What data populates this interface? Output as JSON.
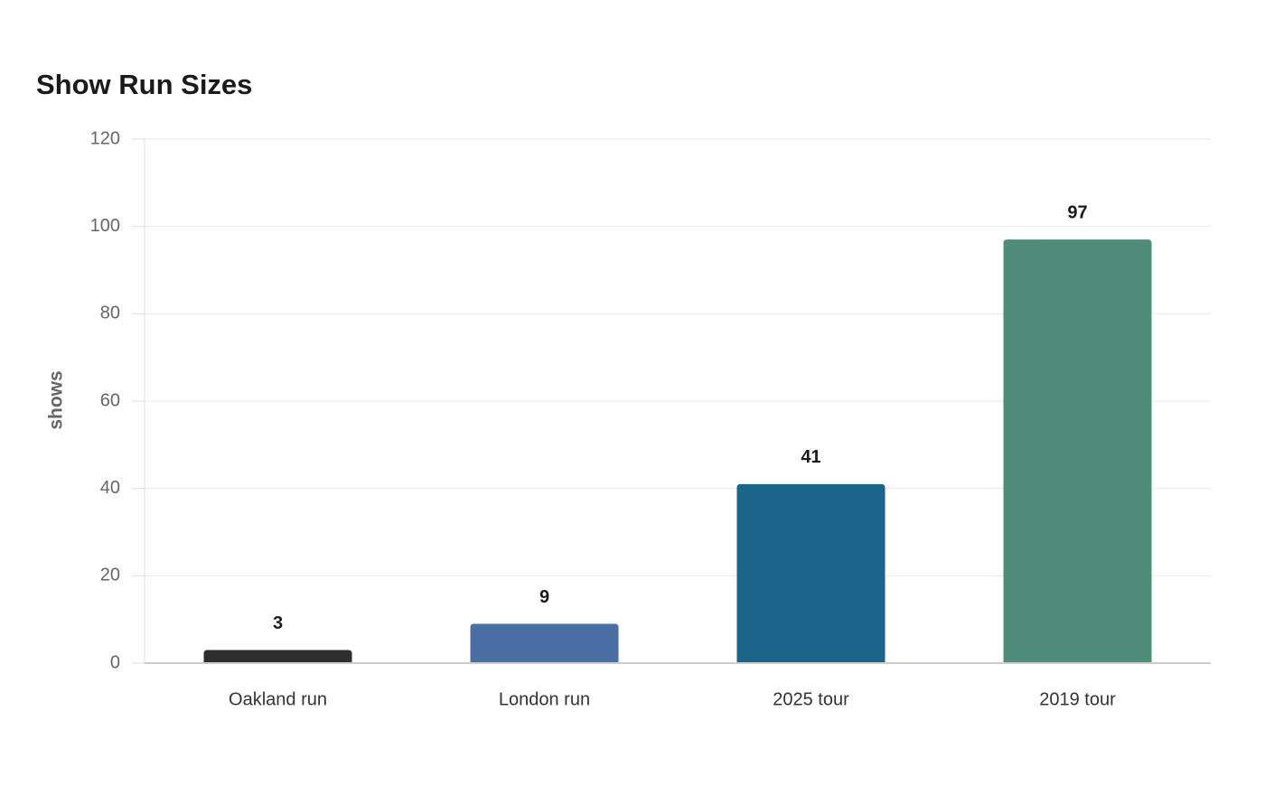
{
  "chart_data": {
    "type": "bar",
    "title": "Show Run Sizes",
    "y_label": "shows",
    "categories": [
      "Oakland run",
      "London run",
      "2025 tour",
      "2019 tour"
    ],
    "values": [
      3,
      9,
      41,
      97
    ],
    "colors": [
      "#2e2e2e",
      "#4a6fa5",
      "#1a6389",
      "#4f8c7a"
    ],
    "ylim": [
      0,
      120
    ],
    "yticks": [
      0,
      20,
      40,
      60,
      80,
      100,
      120
    ],
    "grid": true
  }
}
